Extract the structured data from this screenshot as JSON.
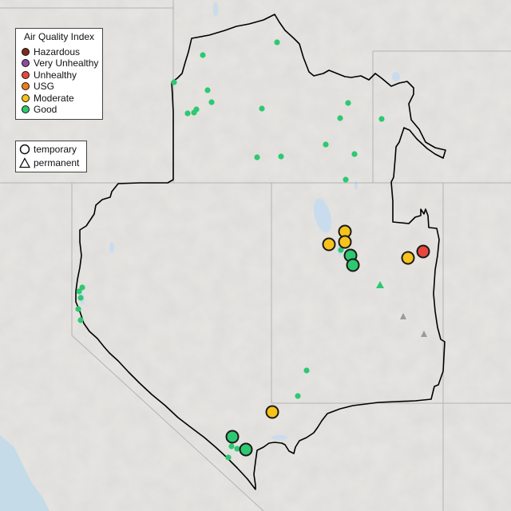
{
  "legend": {
    "title": "Air Quality Index",
    "categories": [
      {
        "label": "Hazardous",
        "color": "#7e2a1f"
      },
      {
        "label": "Very Unhealthy",
        "color": "#8e4d9e"
      },
      {
        "label": "Unhealthy",
        "color": "#e8473b"
      },
      {
        "label": "USG",
        "color": "#f07c1b"
      },
      {
        "label": "Moderate",
        "color": "#f7c21a"
      },
      {
        "label": "Good",
        "color": "#2ec871"
      }
    ]
  },
  "monitor_types": [
    {
      "label": "temporary",
      "shape": "circle"
    },
    {
      "label": "permanent",
      "shape": "triangle"
    }
  ]
}
